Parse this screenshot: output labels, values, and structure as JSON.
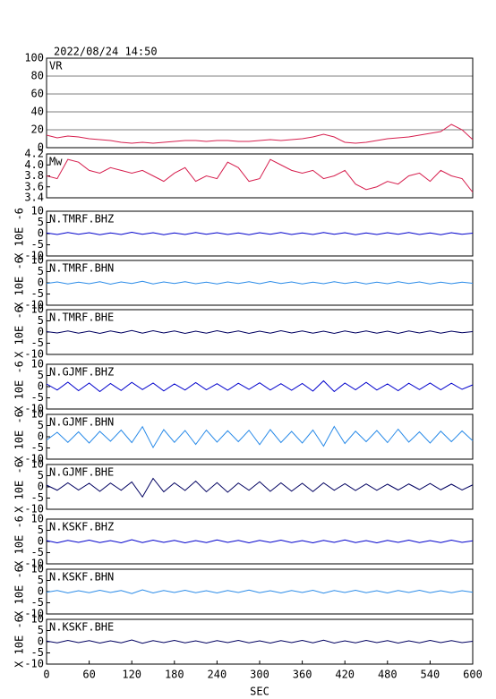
{
  "chart_data": [
    {
      "type": "line",
      "title": "VR",
      "date": "2022/08/24  14:50",
      "xlim": [
        0,
        600
      ],
      "ylim": [
        0,
        100
      ],
      "yticks": [
        0,
        20,
        40,
        60,
        80,
        100
      ],
      "grid": true,
      "color": "#d61f4e",
      "x": [
        0,
        15,
        30,
        45,
        60,
        75,
        90,
        105,
        120,
        135,
        150,
        165,
        180,
        195,
        210,
        225,
        240,
        255,
        270,
        285,
        300,
        315,
        330,
        345,
        360,
        375,
        390,
        405,
        420,
        435,
        450,
        465,
        480,
        495,
        510,
        525,
        540,
        555,
        570,
        585,
        600
      ],
      "values": [
        14,
        11,
        13,
        12,
        10,
        9,
        8,
        6,
        5,
        6,
        5,
        6,
        7,
        8,
        8,
        7,
        8,
        8,
        7,
        7,
        8,
        9,
        8,
        9,
        10,
        12,
        15,
        12,
        6,
        5,
        6,
        8,
        10,
        11,
        12,
        14,
        16,
        18,
        26,
        20,
        9
      ]
    },
    {
      "type": "line",
      "title": "Mw",
      "xlim": [
        0,
        600
      ],
      "ylim": [
        3.4,
        4.2
      ],
      "yticks": [
        3.4,
        3.6,
        3.8,
        {
          "value": 4,
          "label": "4.0"
        },
        4.2
      ],
      "grid": false,
      "color": "#d61f4e",
      "x": [
        0,
        15,
        30,
        45,
        60,
        75,
        90,
        105,
        120,
        135,
        150,
        165,
        180,
        195,
        210,
        225,
        240,
        255,
        270,
        285,
        300,
        315,
        330,
        345,
        360,
        375,
        390,
        405,
        420,
        435,
        450,
        465,
        480,
        495,
        510,
        525,
        540,
        555,
        570,
        585,
        600
      ],
      "values": [
        3.8,
        3.75,
        4.1,
        4.05,
        3.9,
        3.85,
        3.95,
        3.9,
        3.85,
        3.9,
        3.8,
        3.7,
        3.85,
        3.95,
        3.7,
        3.8,
        3.75,
        4.05,
        3.95,
        3.7,
        3.75,
        4.1,
        4.0,
        3.9,
        3.85,
        3.9,
        3.75,
        3.8,
        3.9,
        3.65,
        3.55,
        3.6,
        3.7,
        3.65,
        3.8,
        3.85,
        3.7,
        3.9,
        3.8,
        3.75,
        3.5
      ]
    },
    {
      "type": "line",
      "title": "N.TMRF.BHZ",
      "ylabel": "X 10E -6",
      "xlim": [
        0,
        600
      ],
      "ylim": [
        -10,
        10
      ],
      "yticks": [
        -10,
        -5,
        0,
        5,
        10
      ],
      "color": "#0000cc",
      "x": [
        0,
        15,
        30,
        45,
        60,
        75,
        90,
        105,
        120,
        135,
        150,
        165,
        180,
        195,
        210,
        225,
        240,
        255,
        270,
        285,
        300,
        315,
        330,
        345,
        360,
        375,
        390,
        405,
        420,
        435,
        450,
        465,
        480,
        495,
        510,
        525,
        540,
        555,
        570,
        585,
        600
      ],
      "values": [
        0.3,
        -0.4,
        0.5,
        -0.3,
        0.4,
        -0.5,
        0.3,
        -0.4,
        0.6,
        -0.3,
        0.4,
        -0.5,
        0.3,
        -0.4,
        0.5,
        -0.3,
        0.4,
        -0.4,
        0.3,
        -0.5,
        0.4,
        -0.3,
        0.5,
        -0.4,
        0.3,
        -0.4,
        0.5,
        -0.3,
        0.4,
        -0.5,
        0.3,
        -0.4,
        0.4,
        -0.3,
        0.5,
        -0.4,
        0.3,
        -0.5,
        0.4,
        -0.3,
        0.2
      ]
    },
    {
      "type": "line",
      "title": "N.TMRF.BHN",
      "ylabel": "X 10E -6",
      "xlim": [
        0,
        600
      ],
      "ylim": [
        -10,
        10
      ],
      "yticks": [
        -10,
        -5,
        0,
        5,
        10
      ],
      "color": "#2a8be8",
      "x": [
        0,
        15,
        30,
        45,
        60,
        75,
        90,
        105,
        120,
        135,
        150,
        165,
        180,
        195,
        210,
        225,
        240,
        255,
        270,
        285,
        300,
        315,
        330,
        345,
        360,
        375,
        390,
        405,
        420,
        435,
        450,
        465,
        480,
        495,
        510,
        525,
        540,
        555,
        570,
        585,
        600
      ],
      "values": [
        -0.3,
        0.4,
        -0.5,
        0.3,
        -0.4,
        0.5,
        -0.6,
        0.4,
        -0.3,
        0.7,
        -0.5,
        0.4,
        -0.3,
        0.5,
        -0.4,
        0.3,
        -0.5,
        0.4,
        -0.3,
        0.5,
        -0.4,
        0.6,
        -0.3,
        0.4,
        -0.5,
        0.3,
        -0.4,
        0.5,
        -0.3,
        0.4,
        -0.5,
        0.3,
        -0.4,
        0.5,
        -0.3,
        0.4,
        -0.5,
        0.3,
        -0.4,
        0.3,
        -0.2
      ]
    },
    {
      "type": "line",
      "title": "N.TMRF.BHE",
      "ylabel": "X 10E -6",
      "xlim": [
        0,
        600
      ],
      "ylim": [
        -10,
        10
      ],
      "yticks": [
        -10,
        -5,
        0,
        5,
        10
      ],
      "color": "#000060",
      "x": [
        0,
        15,
        30,
        45,
        60,
        75,
        90,
        105,
        120,
        135,
        150,
        165,
        180,
        195,
        210,
        225,
        240,
        255,
        270,
        285,
        300,
        315,
        330,
        345,
        360,
        375,
        390,
        405,
        420,
        435,
        450,
        465,
        480,
        495,
        510,
        525,
        540,
        555,
        570,
        585,
        600
      ],
      "values": [
        0.2,
        -0.4,
        0.5,
        -0.5,
        0.4,
        -0.6,
        0.5,
        -0.4,
        0.7,
        -0.5,
        0.6,
        -0.4,
        0.5,
        -0.6,
        0.4,
        -0.5,
        0.6,
        -0.4,
        0.5,
        -0.6,
        0.4,
        -0.5,
        0.6,
        -0.4,
        0.5,
        -0.5,
        0.4,
        -0.6,
        0.5,
        -0.4,
        0.5,
        -0.5,
        0.4,
        -0.6,
        0.5,
        -0.4,
        0.5,
        -0.5,
        0.4,
        -0.3,
        0.2
      ]
    },
    {
      "type": "line",
      "title": "N.GJMF.BHZ",
      "ylabel": "X 10E -6",
      "xlim": [
        0,
        600
      ],
      "ylim": [
        -10,
        10
      ],
      "yticks": [
        -10,
        -5,
        0,
        5,
        10
      ],
      "color": "#0000cc",
      "x": [
        0,
        15,
        30,
        45,
        60,
        75,
        90,
        105,
        120,
        135,
        150,
        165,
        180,
        195,
        210,
        225,
        240,
        255,
        270,
        285,
        300,
        315,
        330,
        345,
        360,
        375,
        390,
        405,
        420,
        435,
        450,
        465,
        480,
        495,
        510,
        525,
        540,
        555,
        570,
        585,
        600
      ],
      "values": [
        1.2,
        -1.5,
        2.0,
        -1.8,
        1.6,
        -2.2,
        1.4,
        -1.7,
        1.9,
        -1.3,
        1.6,
        -1.9,
        1.2,
        -1.5,
        1.8,
        -1.4,
        1.3,
        -1.6,
        1.5,
        -1.2,
        1.7,
        -1.5,
        1.3,
        -1.6,
        1.4,
        -2.0,
        2.6,
        -2.2,
        1.6,
        -1.4,
        1.9,
        -1.5,
        1.2,
        -1.8,
        1.5,
        -1.3,
        1.6,
        -1.4,
        1.5,
        -1.2,
        0.8
      ]
    },
    {
      "type": "line",
      "title": "N.GJMF.BHN",
      "ylabel": "X 10E -6",
      "xlim": [
        0,
        600
      ],
      "ylim": [
        -10,
        10
      ],
      "yticks": [
        -10,
        -5,
        0,
        5,
        10
      ],
      "color": "#2a8be8",
      "x": [
        0,
        15,
        30,
        45,
        60,
        75,
        90,
        105,
        120,
        135,
        150,
        165,
        180,
        195,
        210,
        225,
        240,
        255,
        270,
        285,
        300,
        315,
        330,
        345,
        360,
        375,
        390,
        405,
        420,
        435,
        450,
        465,
        480,
        495,
        510,
        525,
        540,
        555,
        570,
        585,
        600
      ],
      "values": [
        -1.5,
        2.0,
        -2.5,
        2.2,
        -2.8,
        2.4,
        -2.0,
        3.0,
        -2.6,
        4.5,
        -4.8,
        3.2,
        -2.5,
        2.8,
        -3.4,
        3.0,
        -2.4,
        2.7,
        -2.2,
        2.9,
        -3.5,
        3.2,
        -2.6,
        2.4,
        -2.8,
        3.0,
        -4.2,
        4.6,
        -3.0,
        2.5,
        -2.2,
        2.8,
        -2.6,
        3.4,
        -2.4,
        2.2,
        -2.8,
        2.5,
        -2.2,
        2.6,
        -1.8
      ]
    },
    {
      "type": "line",
      "title": "N.GJMF.BHE",
      "ylabel": "X 10E -6",
      "xlim": [
        0,
        600
      ],
      "ylim": [
        -10,
        10
      ],
      "yticks": [
        -10,
        -5,
        0,
        5,
        10
      ],
      "color": "#000060",
      "x": [
        0,
        15,
        30,
        45,
        60,
        75,
        90,
        105,
        120,
        135,
        150,
        165,
        180,
        195,
        210,
        225,
        240,
        255,
        270,
        285,
        300,
        315,
        330,
        345,
        360,
        375,
        390,
        405,
        420,
        435,
        450,
        465,
        480,
        495,
        510,
        525,
        540,
        555,
        570,
        585,
        600
      ],
      "values": [
        0.8,
        -1.5,
        1.8,
        -1.4,
        1.6,
        -2.0,
        1.7,
        -1.5,
        2.2,
        -4.5,
        3.8,
        -2.2,
        1.8,
        -1.6,
        2.6,
        -2.2,
        1.9,
        -2.4,
        1.7,
        -1.5,
        2.3,
        -2.0,
        1.8,
        -1.9,
        1.6,
        -2.1,
        1.8,
        -1.5,
        1.4,
        -1.6,
        1.3,
        -1.5,
        1.2,
        -1.4,
        1.3,
        -1.2,
        1.5,
        -1.3,
        1.2,
        -1.4,
        0.9
      ]
    },
    {
      "type": "line",
      "title": "N.KSKF.BHZ",
      "ylabel": "X 10E -6",
      "xlim": [
        0,
        600
      ],
      "ylim": [
        -10,
        10
      ],
      "yticks": [
        -10,
        -5,
        0,
        5,
        10
      ],
      "color": "#0000cc",
      "x": [
        0,
        15,
        30,
        45,
        60,
        75,
        90,
        105,
        120,
        135,
        150,
        165,
        180,
        195,
        210,
        225,
        240,
        255,
        270,
        285,
        300,
        315,
        330,
        345,
        360,
        375,
        390,
        405,
        420,
        435,
        450,
        465,
        480,
        495,
        510,
        525,
        540,
        555,
        570,
        585,
        600
      ],
      "values": [
        0.4,
        -0.6,
        0.5,
        -0.4,
        0.6,
        -0.5,
        0.4,
        -0.6,
        0.8,
        -0.5,
        0.6,
        -0.4,
        0.5,
        -0.6,
        0.4,
        -0.5,
        0.7,
        -0.4,
        0.5,
        -0.6,
        0.5,
        -0.4,
        0.6,
        -0.5,
        0.4,
        -0.6,
        0.5,
        -0.4,
        0.7,
        -0.5,
        0.4,
        -0.6,
        0.5,
        -0.4,
        0.6,
        -0.5,
        0.4,
        -0.5,
        0.6,
        -0.4,
        0.3
      ]
    },
    {
      "type": "line",
      "title": "N.KSKF.BHN",
      "ylabel": "X 10E -6",
      "xlim": [
        0,
        600
      ],
      "ylim": [
        -10,
        10
      ],
      "yticks": [
        -10,
        -5,
        0,
        5,
        10
      ],
      "color": "#2a8be8",
      "x": [
        0,
        15,
        30,
        45,
        60,
        75,
        90,
        105,
        120,
        135,
        150,
        165,
        180,
        195,
        210,
        225,
        240,
        255,
        270,
        285,
        300,
        315,
        330,
        345,
        360,
        375,
        390,
        405,
        420,
        435,
        450,
        465,
        480,
        495,
        510,
        525,
        540,
        555,
        570,
        585,
        600
      ],
      "values": [
        -0.3,
        0.5,
        -0.6,
        0.4,
        -0.5,
        0.6,
        -0.4,
        0.5,
        -0.9,
        0.8,
        -0.6,
        0.5,
        -0.4,
        0.6,
        -0.5,
        0.4,
        -0.6,
        0.5,
        -0.4,
        0.7,
        -0.5,
        0.4,
        -0.6,
        0.5,
        -0.4,
        0.6,
        -0.7,
        0.5,
        -0.4,
        0.6,
        -0.5,
        0.4,
        -0.6,
        0.5,
        -0.4,
        0.6,
        -0.5,
        0.4,
        -0.5,
        0.4,
        -0.3
      ]
    },
    {
      "type": "line",
      "title": "N.KSKF.BHE",
      "ylabel": "X 10E -6",
      "xlabel": "SEC",
      "xlim": [
        0,
        600
      ],
      "ylim": [
        -10,
        10
      ],
      "yticks": [
        -10,
        -5,
        0,
        5,
        10
      ],
      "xticks": [
        0,
        60,
        120,
        180,
        240,
        300,
        360,
        420,
        480,
        540,
        600
      ],
      "color": "#000060",
      "x": [
        0,
        15,
        30,
        45,
        60,
        75,
        90,
        105,
        120,
        135,
        150,
        165,
        180,
        195,
        210,
        225,
        240,
        255,
        270,
        285,
        300,
        315,
        330,
        345,
        360,
        375,
        390,
        405,
        420,
        435,
        450,
        465,
        480,
        495,
        510,
        525,
        540,
        555,
        570,
        585,
        600
      ],
      "values": [
        0.3,
        -0.5,
        0.6,
        -0.4,
        0.5,
        -0.6,
        0.4,
        -0.5,
        0.8,
        -0.7,
        0.5,
        -0.4,
        0.6,
        -0.5,
        0.4,
        -0.6,
        0.5,
        -0.4,
        0.6,
        -0.5,
        0.4,
        -0.6,
        0.5,
        -0.4,
        0.6,
        -0.5,
        0.7,
        -0.6,
        0.4,
        -0.5,
        0.6,
        -0.4,
        0.5,
        -0.6,
        0.4,
        -0.5,
        0.6,
        -0.4,
        0.5,
        -0.4,
        0.2
      ]
    }
  ]
}
